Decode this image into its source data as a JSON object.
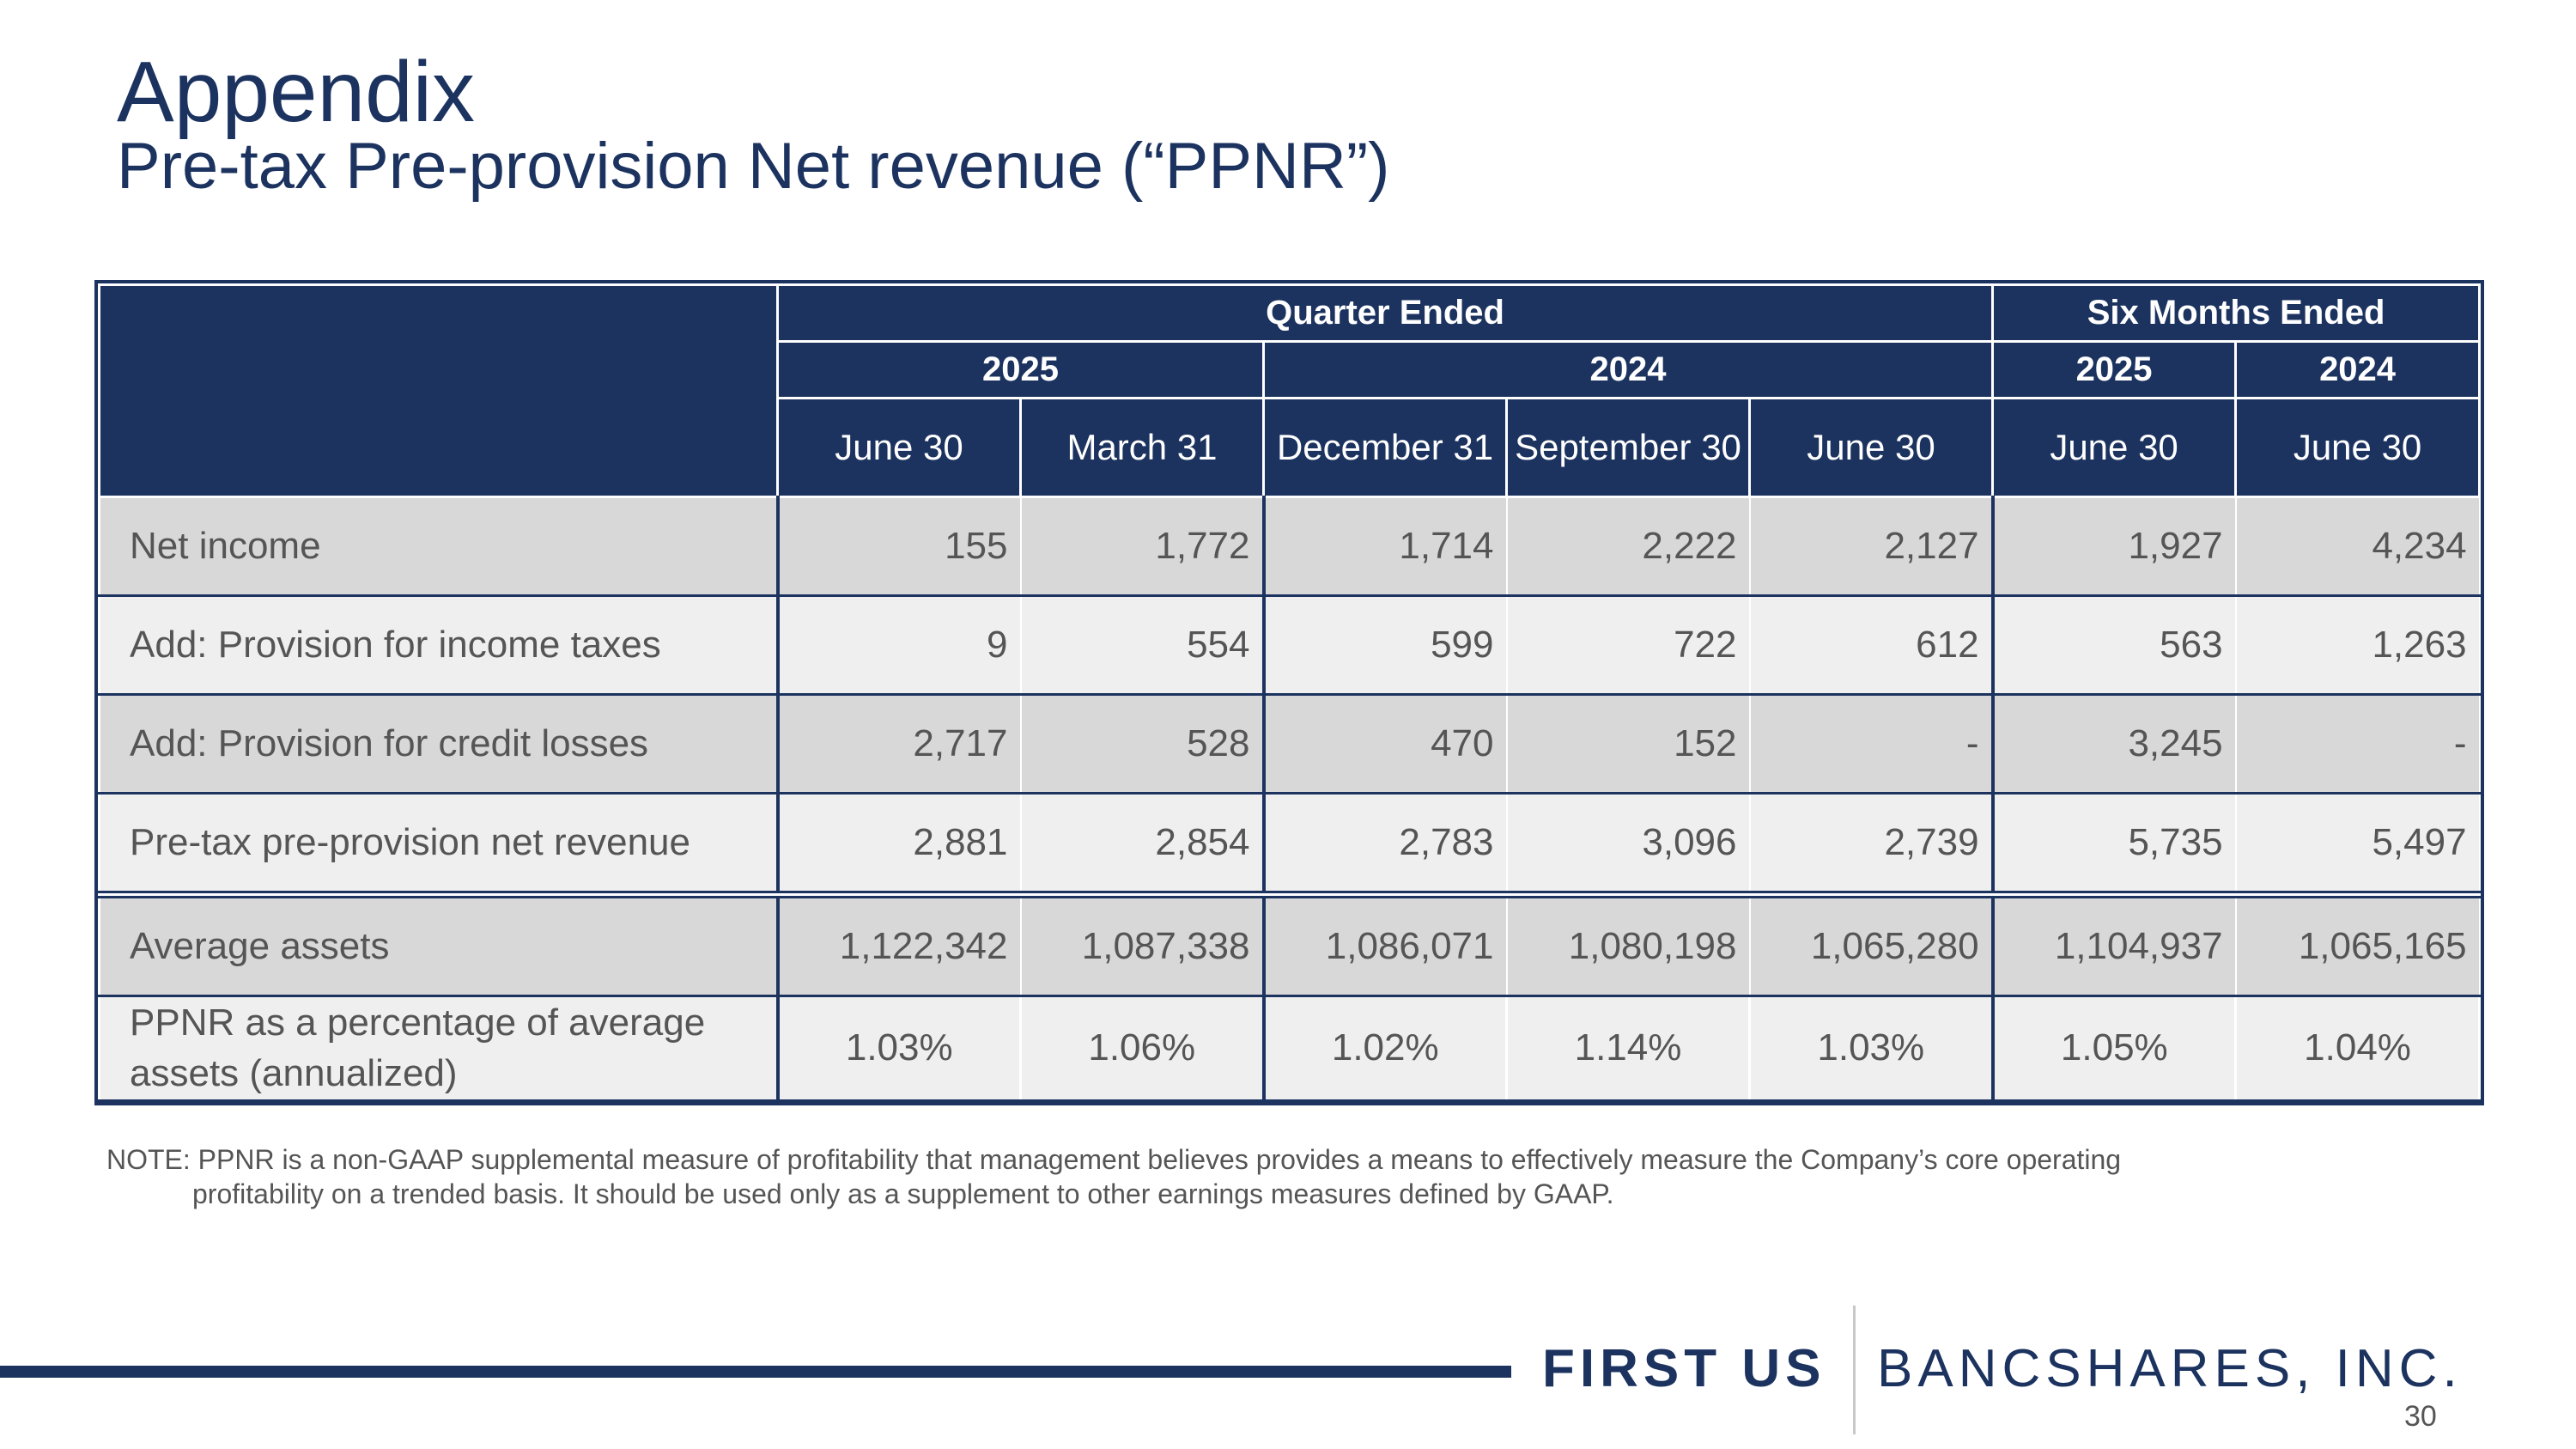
{
  "header": {
    "title": "Appendix",
    "subtitle": "Pre-tax Pre-provision Net revenue (“PPNR”)"
  },
  "table": {
    "group_headers": [
      "Quarter Ended",
      "Six Months Ended"
    ],
    "year_headers": [
      "2025",
      "2024",
      "2025",
      "2024"
    ],
    "date_headers": [
      "June 30",
      "March 31",
      "December 31",
      "September 30",
      "June 30",
      "June 30",
      "June 30"
    ],
    "rows": [
      {
        "label": "Net income",
        "values": [
          "155",
          "1,772",
          "1,714",
          "2,222",
          "2,127",
          "1,927",
          "4,234"
        ]
      },
      {
        "label": "Add: Provision for income taxes",
        "values": [
          "9",
          "554",
          "599",
          "722",
          "612",
          "563",
          "1,263"
        ]
      },
      {
        "label": "Add: Provision for credit losses",
        "values": [
          "2,717",
          "528",
          "470",
          "152",
          "-",
          "3,245",
          "-"
        ]
      },
      {
        "label": "Pre-tax pre-provision net revenue",
        "values": [
          "2,881",
          "2,854",
          "2,783",
          "3,096",
          "2,739",
          "5,735",
          "5,497"
        ]
      },
      {
        "label": "Average assets",
        "values": [
          "1,122,342",
          "1,087,338",
          "1,086,071",
          "1,080,198",
          "1,065,280",
          "1,104,937",
          "1,065,165"
        ]
      },
      {
        "label": "PPNR as a percentage of average assets (annualized)",
        "values": [
          "1.03%",
          "1.06%",
          "1.02%",
          "1.14%",
          "1.03%",
          "1.05%",
          "1.04%"
        ]
      }
    ]
  },
  "note": {
    "line1": "NOTE: PPNR is a non-GAAP supplemental measure of profitability that management believes provides a means to effectively measure the Company’s core operating",
    "line2": "profitability on a trended basis. It should be used only as a supplement to other earnings measures defined by GAAP."
  },
  "footer": {
    "logo_first": "FIRST US",
    "logo_bancshares": "BANCSHARES, INC.",
    "page_number": "30"
  },
  "colors": {
    "navy": "#1c3360",
    "row_dark": "#d8d8d8",
    "row_light": "#efefef",
    "text_gray": "#555555"
  }
}
